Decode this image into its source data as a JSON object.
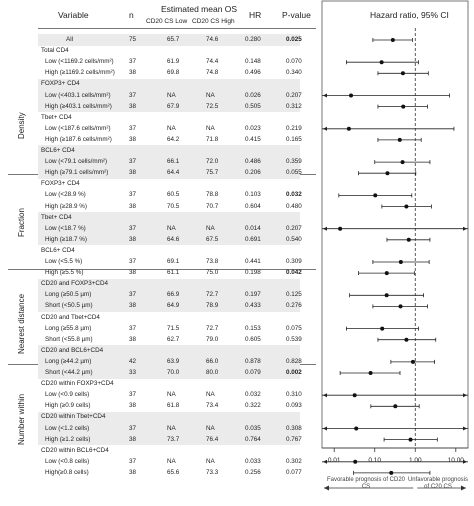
{
  "header": {
    "variable": "Variable",
    "n": "n",
    "estimated_mean_os": "Estimated mean OS",
    "cd20_low": "CD20 CS  Low",
    "cd20_high": "CD20 CS  High",
    "hr": "HR",
    "pvalue": "P-value",
    "forest": "Hazard ratio, 95% CI"
  },
  "sections": {
    "density": "Density",
    "fraction": "Fraction",
    "nearest": "Nearest distance",
    "within": "Number within"
  },
  "rows": [
    {
      "label": "All",
      "indent": 2,
      "n": "75",
      "low": "65.7",
      "high": "74.6",
      "hr": "0.280",
      "p": "0.025",
      "pbold": true,
      "band": true
    },
    {
      "label": "Total CD4",
      "indent": 1,
      "band": false
    },
    {
      "label": "Low (<1169.2 cells/mm²)",
      "indent": 2,
      "n": "37",
      "low": "61.9",
      "high": "74.4",
      "hr": "0.148",
      "p": "0.070",
      "band": false
    },
    {
      "label": "High (≥1169.2 cells/mm²)",
      "indent": 2,
      "n": "38",
      "low": "69.8",
      "high": "74.8",
      "hr": "0.496",
      "p": "0.340",
      "band": false
    },
    {
      "label": "FOXP3+ CD4",
      "indent": 1,
      "band": true
    },
    {
      "label": "Low (<403.1 cells/mm²)",
      "indent": 2,
      "n": "37",
      "low": "NA",
      "high": "NA",
      "hr": "0.026",
      "p": "0.207",
      "band": true
    },
    {
      "label": "High (≥403.1 cells/mm²)",
      "indent": 2,
      "n": "38",
      "low": "67.9",
      "high": "72.5",
      "hr": "0.505",
      "p": "0.312",
      "band": true
    },
    {
      "label": "Tbet+ CD4",
      "indent": 1,
      "band": false
    },
    {
      "label": "Low (<187.6 cells/mm²)",
      "indent": 2,
      "n": "37",
      "low": "NA",
      "high": "NA",
      "hr": "0.023",
      "p": "0.219",
      "band": false
    },
    {
      "label": "High (≥187.6 cells/mm²)",
      "indent": 2,
      "n": "38",
      "low": "64.2",
      "high": "71.8",
      "hr": "0.415",
      "p": "0.165",
      "band": false
    },
    {
      "label": "BCL6+ CD4",
      "indent": 1,
      "band": true
    },
    {
      "label": "Low (<79.1 cells/mm²)",
      "indent": 2,
      "n": "37",
      "low": "66.1",
      "high": "72.0",
      "hr": "0.486",
      "p": "0.359",
      "band": true
    },
    {
      "label": "High (≥79.1 cells/mm²)",
      "indent": 2,
      "n": "38",
      "low": "64.4",
      "high": "75.7",
      "hr": "0.206",
      "p": "0.055",
      "band": true
    },
    {
      "label": "FOXP3+ CD4",
      "indent": 1,
      "band": false
    },
    {
      "label": "Low (<28.9 %)",
      "indent": 2,
      "n": "37",
      "low": "60.5",
      "high": "78.8",
      "hr": "0.103",
      "p": "0.032",
      "pbold": true,
      "band": false
    },
    {
      "label": "High (≥28.9 %)",
      "indent": 2,
      "n": "38",
      "low": "70.5",
      "high": "70.7",
      "hr": "0.604",
      "p": "0.480",
      "band": false
    },
    {
      "label": "Tbet+ CD4",
      "indent": 1,
      "band": true
    },
    {
      "label": "Low (<18.7 %)",
      "indent": 2,
      "n": "37",
      "low": "NA",
      "high": "NA",
      "hr": "0.014",
      "p": "0.207",
      "band": true
    },
    {
      "label": "High (≥18.7 %)",
      "indent": 2,
      "n": "38",
      "low": "64.6",
      "high": "67.5",
      "hr": "0.691",
      "p": "0.540",
      "band": true
    },
    {
      "label": "BCL6+ CD4",
      "indent": 1,
      "band": false
    },
    {
      "label": "Low (<5.5 %)",
      "indent": 2,
      "n": "37",
      "low": "69.1",
      "high": "73.8",
      "hr": "0.441",
      "p": "0.309",
      "band": false
    },
    {
      "label": "High (≥5.5 %)",
      "indent": 2,
      "n": "38",
      "low": "61.1",
      "high": "75.0",
      "hr": "0.198",
      "p": "0.042",
      "pbold": true,
      "band": false
    },
    {
      "label": "CD20 and FOXP3+CD4",
      "indent": 1,
      "band": true
    },
    {
      "label": "Long (≥50.5 µm)",
      "indent": 2,
      "n": "37",
      "low": "66.9",
      "high": "72.7",
      "hr": "0.197",
      "p": "0.125",
      "band": true
    },
    {
      "label": "Short (<50.5 µm)",
      "indent": 2,
      "n": "38",
      "low": "64.9",
      "high": "78.9",
      "hr": "0.433",
      "p": "0.276",
      "band": true
    },
    {
      "label": "CD20 and Tbet+CD4",
      "indent": 1,
      "band": false
    },
    {
      "label": "Long (≥55.8 µm)",
      "indent": 2,
      "n": "37",
      "low": "71.5",
      "high": "72.7",
      "hr": "0.153",
      "p": "0.075",
      "band": false
    },
    {
      "label": "Short (<55.8 µm)",
      "indent": 2,
      "n": "38",
      "low": "62.7",
      "high": "79.0",
      "hr": "0.605",
      "p": "0.539",
      "band": false
    },
    {
      "label": "CD20 and BCL6+CD4",
      "indent": 1,
      "band": true
    },
    {
      "label": "Long (≥44.2 µm)",
      "indent": 2,
      "n": "42",
      "low": "63.9",
      "high": "66.0",
      "hr": "0.878",
      "p": "0.828",
      "band": true
    },
    {
      "label": "Short (<44.2 µm)",
      "indent": 2,
      "n": "33",
      "low": "70.0",
      "high": "80.0",
      "hr": "0.079",
      "p": "0.002",
      "pbold": true,
      "band": true
    },
    {
      "label": "CD20 within FOXP3+CD4",
      "indent": 1,
      "band": false
    },
    {
      "label": "Low (<0.9 cells)",
      "indent": 2,
      "n": "37",
      "low": "NA",
      "high": "NA",
      "hr": "0.032",
      "p": "0.310",
      "band": false
    },
    {
      "label": "High (≥0.9 cells)",
      "indent": 2,
      "n": "38",
      "low": "61.8",
      "high": "73.4",
      "hr": "0.322",
      "p": "0.093",
      "band": false
    },
    {
      "label": "CD20 within Tbet+CD4",
      "indent": 1,
      "band": true
    },
    {
      "label": "Low (<1.2 cells)",
      "indent": 2,
      "n": "37",
      "low": "NA",
      "high": "NA",
      "hr": "0.035",
      "p": "0.308",
      "band": true
    },
    {
      "label": "High (≥1.2 cells)",
      "indent": 2,
      "n": "38",
      "low": "73.7",
      "high": "76.4",
      "hr": "0.764",
      "p": "0.767",
      "band": true
    },
    {
      "label": "CD20 within BCL6+CD4",
      "indent": 1,
      "band": false
    },
    {
      "label": "Low (<0.8 cells)",
      "indent": 2,
      "n": "37",
      "low": "NA",
      "high": "NA",
      "hr": "0.033",
      "p": "0.302",
      "band": false
    },
    {
      "label": "High(≥0.8 cells)",
      "indent": 2,
      "n": "38",
      "low": "65.6",
      "high": "73.3",
      "hr": "0.256",
      "p": "0.077",
      "band": false
    }
  ],
  "chart_data": {
    "type": "scatter",
    "title": "Hazard ratio, 95% CI",
    "xscale": "log",
    "xlim": [
      0.005,
      20
    ],
    "xticks": [
      "0.01",
      "0.10",
      "1.00",
      "10.00"
    ],
    "xtick_values": [
      0.01,
      0.1,
      1,
      10
    ],
    "reference_line": 1,
    "left_note": "Favorable prognosis of CD20 CS",
    "right_note": "Unfavorable prognosis of C20 CS",
    "points": [
      {
        "row": 0,
        "hr": 0.28,
        "lo": 0.09,
        "hi": 0.85
      },
      {
        "row": 2,
        "hr": 0.148,
        "lo": 0.02,
        "hi": 1.2
      },
      {
        "row": 3,
        "hr": 0.496,
        "lo": 0.12,
        "hi": 2.1
      },
      {
        "row": 5,
        "hr": 0.026,
        "lo": 0.0012,
        "hi": 7
      },
      {
        "row": 6,
        "hr": 0.505,
        "lo": 0.12,
        "hi": 2.0
      },
      {
        "row": 8,
        "hr": 0.023,
        "lo": 0.0012,
        "hi": 9
      },
      {
        "row": 9,
        "hr": 0.415,
        "lo": 0.12,
        "hi": 1.4
      },
      {
        "row": 11,
        "hr": 0.486,
        "lo": 0.1,
        "hi": 2.3
      },
      {
        "row": 12,
        "hr": 0.206,
        "lo": 0.04,
        "hi": 1.03
      },
      {
        "row": 14,
        "hr": 0.103,
        "lo": 0.013,
        "hi": 0.82
      },
      {
        "row": 15,
        "hr": 0.604,
        "lo": 0.15,
        "hi": 2.5
      },
      {
        "row": 17,
        "hr": 0.014,
        "lo": 0.0012,
        "hi": 50
      },
      {
        "row": 18,
        "hr": 0.691,
        "lo": 0.2,
        "hi": 2.3
      },
      {
        "row": 20,
        "hr": 0.441,
        "lo": 0.09,
        "hi": 2.2
      },
      {
        "row": 21,
        "hr": 0.198,
        "lo": 0.04,
        "hi": 0.95
      },
      {
        "row": 23,
        "hr": 0.197,
        "lo": 0.024,
        "hi": 1.6
      },
      {
        "row": 24,
        "hr": 0.433,
        "lo": 0.09,
        "hi": 2.0
      },
      {
        "row": 26,
        "hr": 0.153,
        "lo": 0.02,
        "hi": 1.2
      },
      {
        "row": 27,
        "hr": 0.605,
        "lo": 0.12,
        "hi": 3.2
      },
      {
        "row": 29,
        "hr": 0.878,
        "lo": 0.25,
        "hi": 3.0
      },
      {
        "row": 30,
        "hr": 0.079,
        "lo": 0.014,
        "hi": 0.42
      },
      {
        "row": 32,
        "hr": 0.032,
        "lo": 0.0012,
        "hi": 50
      },
      {
        "row": 33,
        "hr": 0.322,
        "lo": 0.08,
        "hi": 1.25
      },
      {
        "row": 35,
        "hr": 0.035,
        "lo": 0.0012,
        "hi": 50
      },
      {
        "row": 36,
        "hr": 0.764,
        "lo": 0.17,
        "hi": 3.5
      },
      {
        "row": 38,
        "hr": 0.033,
        "lo": 0.0012,
        "hi": 50
      },
      {
        "row": 39,
        "hr": 0.256,
        "lo": 0.03,
        "hi": 2.3
      }
    ]
  }
}
